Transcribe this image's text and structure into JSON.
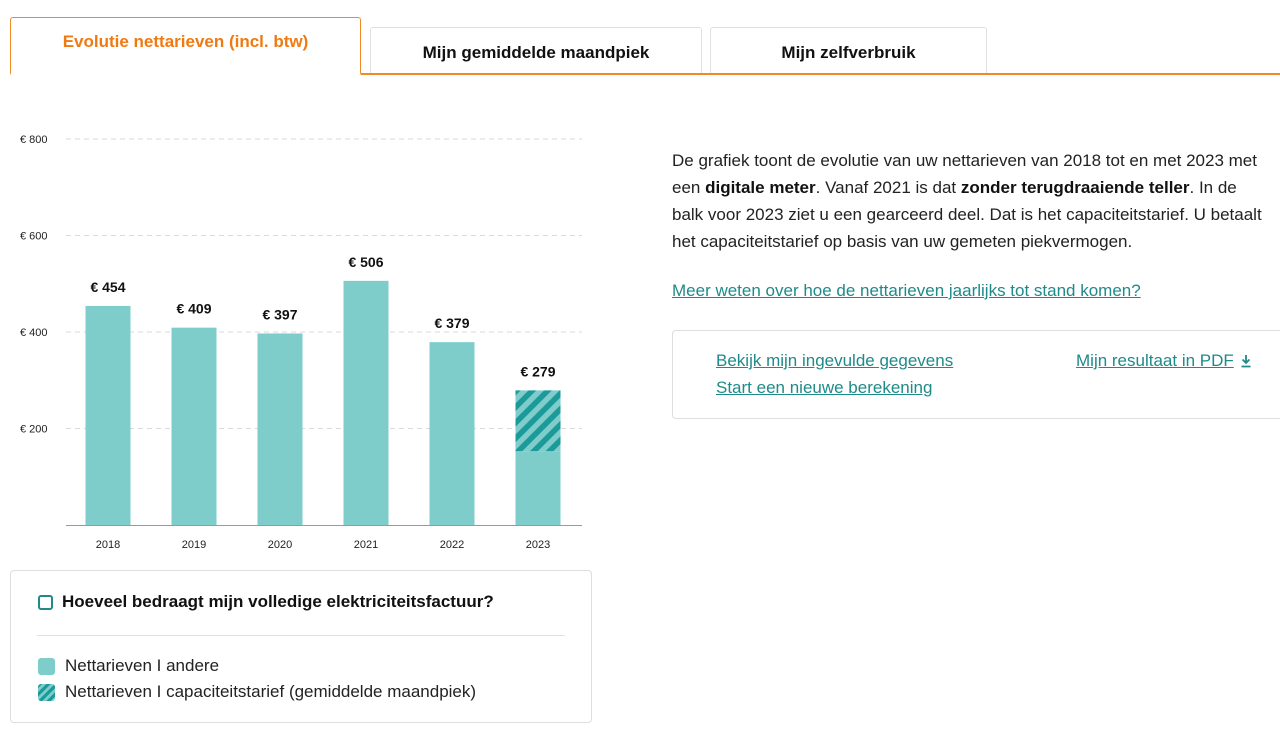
{
  "tabs": [
    {
      "label": "Evolutie nettarieven (incl. btw)",
      "active": true
    },
    {
      "label": "Mijn gemiddelde maandpiek",
      "active": false
    },
    {
      "label": "Mijn zelfverbruik",
      "active": false
    }
  ],
  "chart_data": {
    "type": "bar",
    "stacked": true,
    "categories": [
      "2018",
      "2019",
      "2020",
      "2021",
      "2022",
      "2023"
    ],
    "series": [
      {
        "name": "Nettarieven I andere",
        "values": [
          454,
          409,
          397,
          506,
          379,
          153
        ],
        "color": "#7ecdcb"
      },
      {
        "name": "Nettarieven I capaciteitstarief (gemiddelde maandpiek)",
        "values": [
          0,
          0,
          0,
          0,
          0,
          126
        ],
        "color": "#1c9a9a",
        "pattern": "hatched"
      }
    ],
    "totals": [
      454,
      409,
      397,
      506,
      379,
      279
    ],
    "data_labels": [
      "€ 454",
      "€ 409",
      "€ 397",
      "€ 506",
      "€ 379",
      "€ 279"
    ],
    "y_ticks": [
      200,
      400,
      600,
      800
    ],
    "y_tick_labels": [
      "€ 200",
      "€ 400",
      "€ 600",
      "€ 800"
    ],
    "ylim": [
      0,
      800
    ],
    "grid": true
  },
  "legend": {
    "checkbox_label": "Hoeveel bedraagt mijn volledige elektriciteitsfactuur?",
    "checked": false,
    "items": [
      {
        "label": "Nettarieven I andere"
      },
      {
        "label": "Nettarieven I capaciteitstarief (gemiddelde maandpiek)"
      }
    ]
  },
  "description": {
    "p1": "De grafiek toont de evolutie van uw nettarieven van 2018 tot en met 2023 met een ",
    "b1": "digitale meter",
    "p2": ". Vanaf 2021 is dat ",
    "b2": "zonder terugdraaiende teller",
    "p3": ". In de balk voor 2023 ziet u een gearceerd deel. Dat is het capaciteitstarief. U betaalt het capaciteitstarief op basis van uw gemeten piekvermogen."
  },
  "links": {
    "more_info": "Meer weten over hoe de nettarieven jaarlijks tot stand komen?",
    "view_data": "Bekijk mijn ingevulde gegevens",
    "new_calc": "Start een nieuwe berekening",
    "pdf": "Mijn resultaat in PDF"
  },
  "colors": {
    "accent": "#f08a24",
    "teal_light": "#7ecdcb",
    "teal_dark": "#1c9a9a",
    "link": "#1f8a8a"
  },
  "icons": {
    "download": "download-icon"
  }
}
